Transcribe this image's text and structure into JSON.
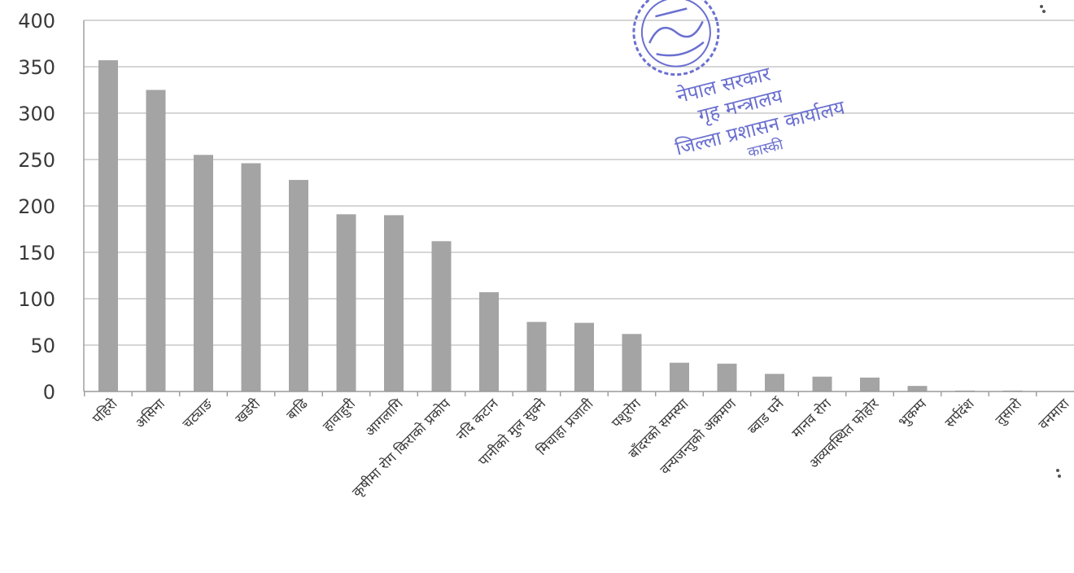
{
  "chart_data": {
    "type": "bar",
    "categories": [
      "पहिरो",
      "असिना",
      "चट्याङ",
      "खडेरी",
      "बाढि",
      "हावाहुरी",
      "आगलागि",
      "कृषीमा रोग किराको प्रकोप",
      "नदि कटान",
      "पानीको मुल सुक्ने",
      "मिचाहा प्रजाती",
      "पशुरोग",
      "बाँदरको समस्या",
      "वन्यजन्तुको अक्रमण",
      "ब्वाड पर्ने",
      "मानव रोग",
      "अव्यवस्थित फोहोर",
      "भुकम्प",
      "सर्पदंश",
      "तुसारो",
      "वनमारा"
    ],
    "values": [
      357,
      325,
      255,
      246,
      228,
      191,
      190,
      162,
      107,
      75,
      74,
      62,
      31,
      30,
      19,
      16,
      15,
      6,
      1,
      1,
      0
    ],
    "ylim": [
      0,
      400
    ],
    "yticks": [
      "0",
      "50",
      "100",
      "150",
      "200",
      "250",
      "300",
      "350",
      "400"
    ],
    "grid": true,
    "legend": "none",
    "bar_color": "#a4a4a4"
  },
  "stamp": {
    "lines": [
      "नेपाल सरकार",
      "गृह मन्त्रालय",
      "जिल्ला प्रशासन कार्यालय",
      "कास्की"
    ],
    "color": "#6a6fd0"
  }
}
